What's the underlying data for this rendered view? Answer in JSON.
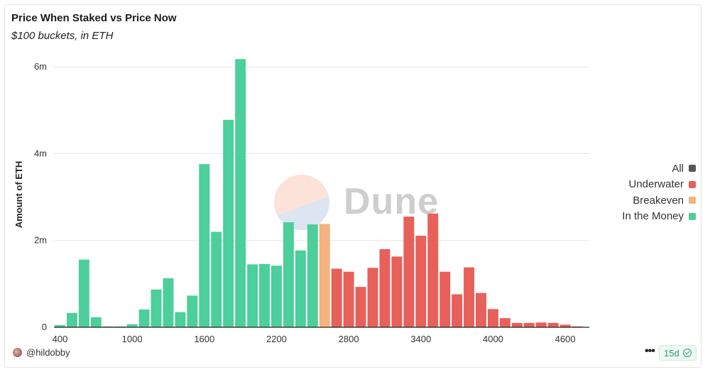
{
  "chart_data": {
    "type": "bar",
    "title": "Price When Staked vs Price Now",
    "subtitle": "$100 buckets, in ETH",
    "xlabel": "",
    "ylabel": "Amount of ETH",
    "xlim": [
      400,
      4750
    ],
    "ylim": [
      0,
      6000000
    ],
    "x_ticks": [
      400,
      1000,
      1600,
      2200,
      2800,
      3400,
      4000,
      4600
    ],
    "x_tick_labels": [
      "400",
      "1000",
      "1600",
      "2200",
      "2800",
      "3400",
      "4000",
      "4600"
    ],
    "y_ticks": [
      0,
      2000000,
      4000000,
      6000000
    ],
    "y_tick_labels": [
      "0",
      "2m",
      "4m",
      "6m"
    ],
    "grid": true,
    "legend_position": "right",
    "colors": {
      "All": "#555555",
      "Underwater": "#e8605a",
      "Breakeven": "#f4b27e",
      "In the Money": "#4ccf9a"
    },
    "series": [
      {
        "name": "In the Money",
        "x": [
          400,
          500,
          600,
          700,
          800,
          900,
          1000,
          1100,
          1200,
          1300,
          1400,
          1500,
          1600,
          1700,
          1800,
          1900,
          2000,
          2100,
          2200,
          2300,
          2400,
          2500
        ],
        "values": [
          50000,
          330000,
          1560000,
          230000,
          20000,
          20000,
          70000,
          410000,
          870000,
          1130000,
          350000,
          730000,
          3760000,
          2200000,
          4780000,
          6180000,
          1450000,
          1460000,
          1420000,
          2420000,
          1770000,
          2370000
        ]
      },
      {
        "name": "Breakeven",
        "x": [
          2600
        ],
        "values": [
          2380000
        ]
      },
      {
        "name": "Underwater",
        "x": [
          2700,
          2800,
          2900,
          3000,
          3100,
          3200,
          3300,
          3400,
          3500,
          3600,
          3700,
          3800,
          3900,
          4000,
          4100,
          4200,
          4300,
          4400,
          4500,
          4600,
          4700
        ],
        "values": [
          1350000,
          1280000,
          930000,
          1370000,
          1800000,
          1630000,
          2550000,
          2110000,
          2620000,
          1280000,
          760000,
          1380000,
          790000,
          420000,
          210000,
          100000,
          100000,
          110000,
          100000,
          60000,
          20000
        ]
      }
    ]
  },
  "legend": {
    "items": [
      {
        "label": "All",
        "color": "#555555"
      },
      {
        "label": "Underwater",
        "color": "#e8605a"
      },
      {
        "label": "Breakeven",
        "color": "#f4b27e"
      },
      {
        "label": "In the Money",
        "color": "#4ccf9a"
      }
    ]
  },
  "watermark": {
    "text": "Dune"
  },
  "footer": {
    "author": "@hildobby",
    "more_label": "•••",
    "age_label": "15d"
  }
}
